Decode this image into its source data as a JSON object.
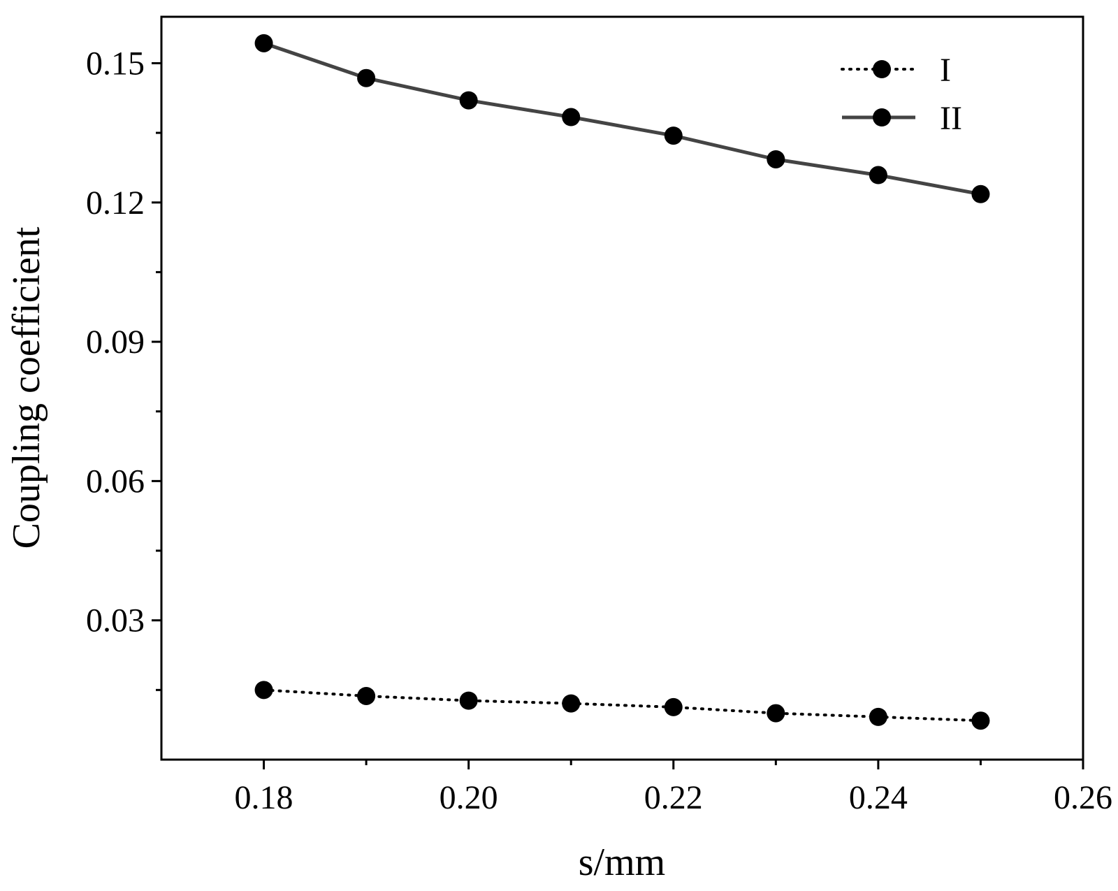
{
  "chart_data": {
    "type": "line",
    "title": "",
    "xlabel": "s/mm",
    "ylabel": "Coupling coefficient",
    "xlim": [
      0.17,
      0.26
    ],
    "ylim": [
      0.0,
      0.16
    ],
    "x_ticks": [
      0.18,
      0.2,
      0.22,
      0.24,
      0.26
    ],
    "x_tick_labels": [
      "0.18",
      "0.20",
      "0.22",
      "0.24",
      "0.26"
    ],
    "x_minor_ticks": [
      0.19,
      0.21,
      0.23,
      0.25
    ],
    "y_ticks": [
      0.03,
      0.06,
      0.09,
      0.12,
      0.15
    ],
    "y_tick_labels": [
      "0.03",
      "0.06",
      "0.09",
      "0.12",
      "0.15"
    ],
    "y_minor_ticks": [
      0.015,
      0.045,
      0.075,
      0.105,
      0.135
    ],
    "grid": false,
    "legend_position": "top-right",
    "x": [
      0.18,
      0.19,
      0.2,
      0.21,
      0.22,
      0.23,
      0.24,
      0.25
    ],
    "series": [
      {
        "name": "I",
        "line_style": "dotted",
        "color": "#000000",
        "values": [
          0.015,
          0.0137,
          0.0127,
          0.0121,
          0.0113,
          0.01,
          0.0092,
          0.0084
        ]
      },
      {
        "name": "II",
        "line_style": "solid",
        "color": "#444444",
        "values": [
          0.1543,
          0.1468,
          0.142,
          0.1384,
          0.1344,
          0.1293,
          0.1259,
          0.1218
        ]
      }
    ]
  }
}
